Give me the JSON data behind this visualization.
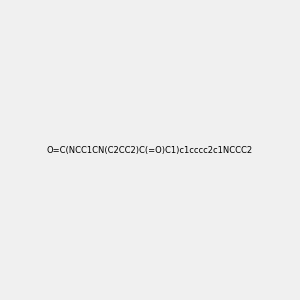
{
  "smiles": "O=C(NCC1CN(C2CC2)C(=O)C1)c1cccc2c1NCCC2",
  "image_size": 300,
  "background_color": "#f0f0f0",
  "title": ""
}
